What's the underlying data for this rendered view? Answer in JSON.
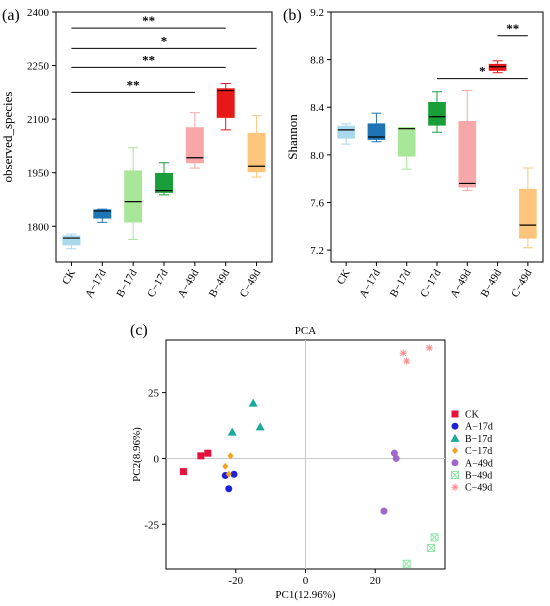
{
  "panels": {
    "a": {
      "label": "(a)"
    },
    "b": {
      "label": "(b)"
    },
    "c": {
      "label": "(c)"
    }
  },
  "colors": {
    "CK": "#e8113b",
    "A-17d": "#1f1fd6",
    "B-17d": "#1aa99b",
    "C-17d": "#f2a21c",
    "A-49d": "#a066c8",
    "B-49d": "#8ee6a5",
    "C-49d": "#ff8a8a"
  },
  "chart_data": [
    {
      "id": "a",
      "type": "box",
      "ylabel": "observed_species",
      "ylim": [
        1700,
        2400
      ],
      "yticks": [
        1800,
        1950,
        2100,
        2250,
        2400
      ],
      "categories": [
        "CK",
        "A−17d",
        "B−17d",
        "C−17d",
        "A−49d",
        "B−49d",
        "C−49d"
      ],
      "boxes": [
        {
          "min": 1737,
          "q1": 1748,
          "median": 1767,
          "q3": 1773,
          "max": 1778,
          "color": "#a9d9ee"
        },
        {
          "min": 1811,
          "q1": 1823,
          "median": 1843,
          "q3": 1846,
          "max": 1848,
          "color": "#1f74b4"
        },
        {
          "min": 1763,
          "q1": 1812,
          "median": 1869,
          "q3": 1955,
          "max": 2020,
          "color": "#a8e69a"
        },
        {
          "min": 1888,
          "q1": 1895,
          "median": 1900,
          "q3": 1948,
          "max": 1978,
          "color": "#1a9e3a"
        },
        {
          "min": 1963,
          "q1": 1978,
          "median": 1992,
          "q3": 2076,
          "max": 2118,
          "color": "#f7a7a7"
        },
        {
          "min": 2070,
          "q1": 2105,
          "median": 2180,
          "q3": 2185,
          "max": 2200,
          "color": "#e81818"
        },
        {
          "min": 1938,
          "q1": 1953,
          "median": 1968,
          "q3": 2060,
          "max": 2110,
          "color": "#fdc57b"
        }
      ],
      "significance": [
        {
          "from": 0,
          "to": 5,
          "label": "**",
          "y": 2355
        },
        {
          "from": 0,
          "to": 6,
          "label": "*",
          "y": 2298
        },
        {
          "from": 0,
          "to": 5,
          "label": "**",
          "y": 2245
        },
        {
          "from": 0,
          "to": 4,
          "label": "**",
          "y": 2175
        }
      ]
    },
    {
      "id": "b",
      "type": "box",
      "ylabel": "Shannon",
      "ylim": [
        7.1,
        9.2
      ],
      "yticks": [
        7.2,
        7.6,
        8.0,
        8.4,
        8.8,
        9.2
      ],
      "categories": [
        "CK",
        "A−17d",
        "B−17d",
        "C−17d",
        "A−49d",
        "B−49d",
        "C−49d"
      ],
      "boxes": [
        {
          "min": 8.09,
          "q1": 8.14,
          "median": 8.21,
          "q3": 8.24,
          "max": 8.26,
          "color": "#a9d9ee"
        },
        {
          "min": 8.11,
          "q1": 8.13,
          "median": 8.15,
          "q3": 8.26,
          "max": 8.35,
          "color": "#1f74b4"
        },
        {
          "min": 7.88,
          "q1": 7.99,
          "median": 8.22,
          "q3": 8.23,
          "max": 8.23,
          "color": "#a8e69a"
        },
        {
          "min": 8.19,
          "q1": 8.25,
          "median": 8.32,
          "q3": 8.44,
          "max": 8.53,
          "color": "#1a9e3a"
        },
        {
          "min": 7.7,
          "q1": 7.73,
          "median": 7.76,
          "q3": 8.28,
          "max": 8.54,
          "color": "#f7a7a7"
        },
        {
          "min": 8.69,
          "q1": 8.71,
          "median": 8.74,
          "q3": 8.76,
          "max": 8.79,
          "color": "#e81818"
        },
        {
          "min": 7.22,
          "q1": 7.3,
          "median": 7.41,
          "q3": 7.71,
          "max": 7.89,
          "color": "#fdc57b"
        }
      ],
      "significance": [
        {
          "from": 5,
          "to": 6,
          "label": "**",
          "y": 9.0
        },
        {
          "from": 3,
          "to": 6,
          "label": "*",
          "y": 8.64
        }
      ]
    },
    {
      "id": "c",
      "type": "scatter",
      "title": "PCA",
      "xlabel": "PC1(12.96%)",
      "ylabel": "PC2(8.96%)",
      "xlim": [
        -40,
        40
      ],
      "ylim": [
        -42,
        45
      ],
      "xticks": [
        -20,
        0,
        20
      ],
      "yticks": [
        -25,
        0,
        25
      ],
      "series": [
        {
          "name": "CK",
          "marker": "square",
          "color": "#e8113b",
          "points": [
            [
              -35,
              -5
            ],
            [
              -30,
              1
            ],
            [
              -28,
              2
            ]
          ]
        },
        {
          "name": "A−17d",
          "marker": "circle",
          "color": "#1f1fd6",
          "points": [
            [
              -20.5,
              -6
            ],
            [
              -22,
              -11.5
            ],
            [
              -23,
              -6.5
            ]
          ]
        },
        {
          "name": "B−17d",
          "marker": "triangle",
          "color": "#1aa99b",
          "points": [
            [
              -15,
              21
            ],
            [
              -21,
              10
            ],
            [
              -13,
              12
            ]
          ]
        },
        {
          "name": "C−17d",
          "marker": "diamond",
          "color": "#f2a21c",
          "points": [
            [
              -21.5,
              1
            ],
            [
              -22,
              -6
            ],
            [
              -23,
              -3
            ]
          ]
        },
        {
          "name": "A−49d",
          "marker": "circle",
          "color": "#a066c8",
          "points": [
            [
              26,
              0
            ],
            [
              25.5,
              2
            ],
            [
              22.5,
              -20
            ]
          ]
        },
        {
          "name": "B−49d",
          "marker": "xbox",
          "color": "#8ee6a5",
          "points": [
            [
              37,
              -30
            ],
            [
              36,
              -34
            ],
            [
              29,
              -40
            ]
          ]
        },
        {
          "name": "C−49d",
          "marker": "asterisk",
          "color": "#ff8a8a",
          "points": [
            [
              28,
              40
            ],
            [
              35.5,
              42
            ],
            [
              29,
              37
            ]
          ]
        }
      ]
    }
  ]
}
